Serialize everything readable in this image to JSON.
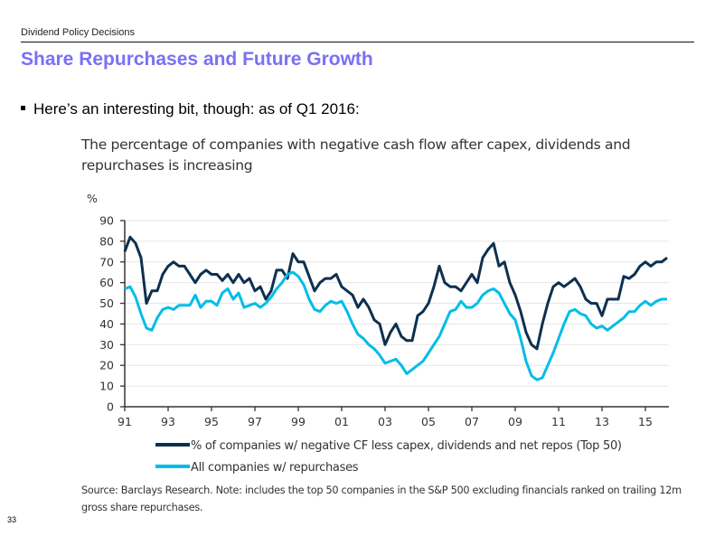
{
  "slide": {
    "header": "Dividend Policy Decisions",
    "title": "Share Repurchases and Future Growth",
    "bullet": "Here’s an interesting bit, though: as of Q1 2016:",
    "page_number": "33",
    "colors": {
      "title": "#7b6ff5"
    }
  },
  "chart_data": {
    "type": "line",
    "title": "The percentage of companies with negative cash flow after capex, dividends and repurchases is increasing",
    "ylabel": "%",
    "xlabel": "",
    "ylim": [
      0,
      90
    ],
    "yticks": [
      "0",
      "10",
      "20",
      "30",
      "40",
      "50",
      "60",
      "70",
      "80",
      "90"
    ],
    "xlim": [
      1991,
      2016
    ],
    "xticks": [
      "91",
      "93",
      "95",
      "97",
      "99",
      "01",
      "03",
      "05",
      "07",
      "09",
      "11",
      "13",
      "15"
    ],
    "x_start": "1991 Q1",
    "x_frequency": "quarterly",
    "grid": "horizontal",
    "legend_placement": "bottom",
    "series": [
      {
        "name": "% of companies w/ negative CF less capex, dividends and net repos (Top 50)",
        "color": "#0d3050",
        "values": [
          75,
          82,
          79,
          72,
          50,
          56,
          56,
          64,
          68,
          70,
          68,
          68,
          64,
          60,
          64,
          66,
          64,
          64,
          61,
          64,
          60,
          64,
          60,
          62,
          56,
          58,
          52,
          56,
          66,
          66,
          62,
          74,
          70,
          70,
          63,
          56,
          60,
          62,
          62,
          64,
          58,
          56,
          54,
          48,
          52,
          48,
          42,
          40,
          30,
          36,
          40,
          34,
          32,
          32,
          44,
          46,
          50,
          58,
          68,
          60,
          58,
          58,
          56,
          60,
          64,
          60,
          72,
          76,
          79,
          68,
          70,
          60,
          54,
          46,
          36,
          30,
          28,
          40,
          50,
          58,
          60,
          58,
          60,
          62,
          58,
          52,
          50,
          50,
          44,
          52,
          52,
          52,
          63,
          62,
          64,
          68,
          70,
          68,
          70,
          70,
          72
        ]
      },
      {
        "name": "All companies w/ repurchases",
        "color": "#00bde8",
        "values": [
          57,
          58,
          53,
          45,
          38,
          37,
          43,
          47,
          48,
          47,
          49,
          49,
          49,
          54,
          48,
          51,
          51,
          49,
          55,
          57,
          52,
          55,
          48,
          49,
          50,
          48,
          50,
          53,
          57,
          60,
          64,
          65,
          63,
          59,
          52,
          47,
          46,
          49,
          51,
          50,
          51,
          46,
          40,
          35,
          33,
          30,
          28,
          25,
          21,
          22,
          23,
          20,
          16,
          18,
          20,
          22,
          26,
          30,
          34,
          40,
          46,
          47,
          51,
          48,
          48,
          50,
          54,
          56,
          57,
          55,
          50,
          45,
          42,
          33,
          22,
          15,
          13,
          14,
          20,
          26,
          33,
          40,
          46,
          47,
          45,
          44,
          40,
          38,
          39,
          37,
          39,
          41,
          43,
          46,
          46,
          49,
          51,
          49,
          51,
          52,
          52
        ]
      }
    ],
    "source": "Source: Barclays Research. Note: includes the top 50 companies in the S&P 500 excluding financials ranked on trailing 12m gross share repurchases."
  }
}
